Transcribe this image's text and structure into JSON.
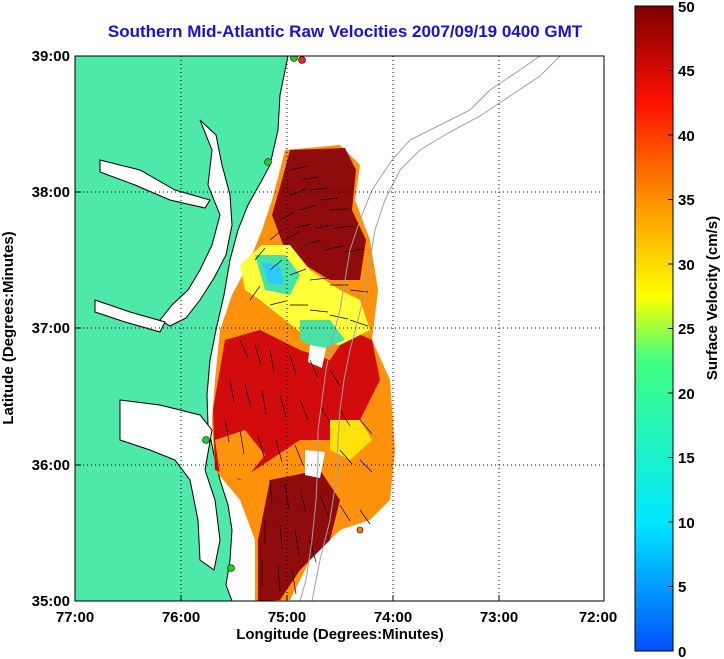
{
  "title": "Southern Mid-Atlantic Raw Velocities 2007/09/19 0400 GMT",
  "xlabel": "Longitude (Degrees:Minutes)",
  "ylabel": "Latitude (Degrees:Minutes)",
  "xticks": [
    "77:00",
    "76:00",
    "75:00",
    "74:00",
    "73:00",
    "72:00"
  ],
  "yticks": [
    "39:00",
    "38:00",
    "37:00",
    "36:00",
    "35:00"
  ],
  "colorbar": {
    "label": "Surface Velocity (cm/s)",
    "ticks": [
      "0",
      "5",
      "10",
      "15",
      "20",
      "25",
      "30",
      "35",
      "40",
      "45",
      "50"
    ],
    "min": 0,
    "max": 50
  },
  "colors": {
    "land": "#4ee8a8",
    "title": "#1a10d8",
    "bathymetry": "#a0a0a0",
    "station_green": "#22cc22",
    "station_red": "#ee2222"
  }
}
